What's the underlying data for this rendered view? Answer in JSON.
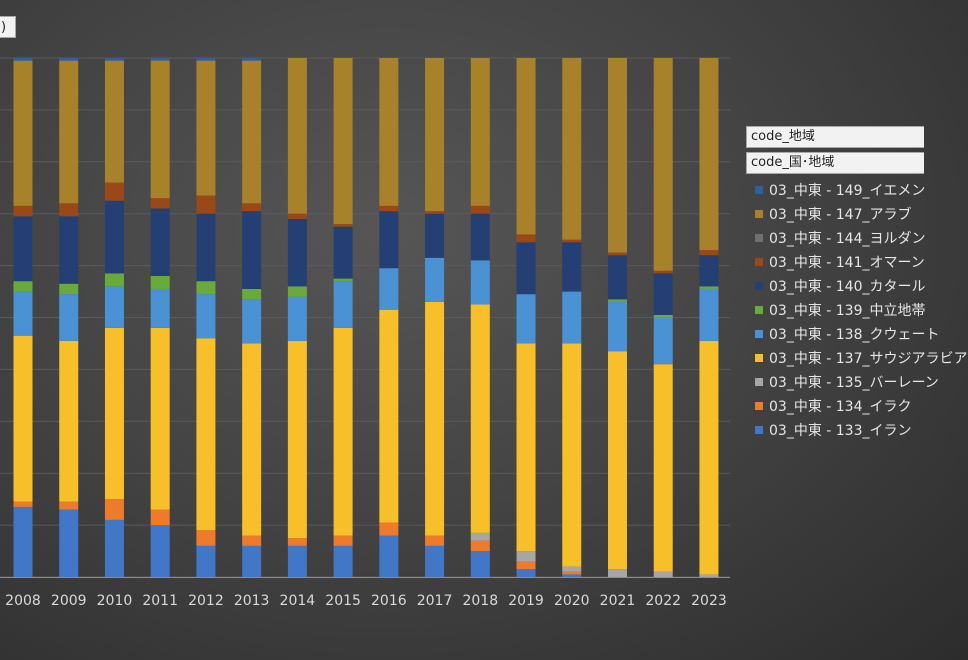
{
  "header": {
    "corner_tag": ")"
  },
  "legend": {
    "field_region": "code_地域",
    "field_country": "code_国･地域",
    "items": [
      {
        "label": "03_中東 - 149_イエメン",
        "color": "#2e5f9e"
      },
      {
        "label": "03_中東 - 147_アラブ",
        "color": "#a8822a"
      },
      {
        "label": "03_中東 - 144_ヨルダン",
        "color": "#6f6f6f"
      },
      {
        "label": "03_中東 - 141_オマーン",
        "color": "#9a4817"
      },
      {
        "label": "03_中東 - 140_カタール",
        "color": "#233f73"
      },
      {
        "label": "03_中東 - 139_中立地帯",
        "color": "#6aaa3c"
      },
      {
        "label": "03_中東 - 138_クウェート",
        "color": "#4a92d4"
      },
      {
        "label": "03_中東 - 137_サウジアラビア",
        "color": "#f7c02a"
      },
      {
        "label": "03_中東 - 135_バーレーン",
        "color": "#a6a6a6"
      },
      {
        "label": "03_中東 - 134_イラク",
        "color": "#ee7b2c"
      },
      {
        "label": "03_中東 - 133_イラン",
        "color": "#4277c8"
      }
    ]
  },
  "chart_data": {
    "type": "bar",
    "stacked": true,
    "normalized": true,
    "ylim": [
      0,
      1
    ],
    "grid": true,
    "legend_position": "right",
    "categories": [
      "2008",
      "2009",
      "2010",
      "2011",
      "2012",
      "2013",
      "2014",
      "2015",
      "2016",
      "2017",
      "2018",
      "2019",
      "2020",
      "2021",
      "2022",
      "2023"
    ],
    "series": [
      {
        "name": "03_中東 - 133_イラン",
        "values": [
          0.135,
          0.13,
          0.11,
          0.1,
          0.06,
          0.06,
          0.06,
          0.06,
          0.08,
          0.06,
          0.05,
          0.015,
          0.005,
          0,
          0,
          0
        ]
      },
      {
        "name": "03_中東 - 134_イラク",
        "values": [
          0.01,
          0.015,
          0.04,
          0.03,
          0.03,
          0.02,
          0.015,
          0.02,
          0.025,
          0.02,
          0.02,
          0.015,
          0.005,
          0,
          0,
          0
        ]
      },
      {
        "name": "03_中東 - 135_バーレーン",
        "values": [
          0,
          0,
          0,
          0,
          0,
          0,
          0,
          0,
          0,
          0,
          0.015,
          0.02,
          0.01,
          0.015,
          0.01,
          0.005
        ]
      },
      {
        "name": "03_中東 - 137_サウジアラビア",
        "values": [
          0.32,
          0.31,
          0.33,
          0.35,
          0.37,
          0.37,
          0.38,
          0.4,
          0.41,
          0.45,
          0.44,
          0.4,
          0.43,
          0.42,
          0.4,
          0.45
        ]
      },
      {
        "name": "03_中東 - 138_クウェート",
        "values": [
          0.085,
          0.09,
          0.08,
          0.075,
          0.085,
          0.085,
          0.085,
          0.09,
          0.08,
          0.085,
          0.085,
          0.095,
          0.1,
          0.095,
          0.09,
          0.1
        ]
      },
      {
        "name": "03_中東 - 139_中立地帯",
        "values": [
          0.02,
          0.02,
          0.025,
          0.025,
          0.025,
          0.02,
          0.02,
          0.005,
          0,
          0,
          0,
          0,
          0,
          0.005,
          0.005,
          0.005
        ]
      },
      {
        "name": "03_中東 - 140_カタール",
        "values": [
          0.125,
          0.13,
          0.14,
          0.13,
          0.13,
          0.15,
          0.13,
          0.1,
          0.11,
          0.085,
          0.09,
          0.1,
          0.095,
          0.085,
          0.08,
          0.06
        ]
      },
      {
        "name": "03_中東 - 141_オマーン",
        "values": [
          0.02,
          0.025,
          0.035,
          0.02,
          0.035,
          0.015,
          0.01,
          0.005,
          0.01,
          0.005,
          0.015,
          0.015,
          0.005,
          0.005,
          0.005,
          0.01
        ]
      },
      {
        "name": "03_中東 - 144_ヨルダン",
        "values": [
          0,
          0,
          0,
          0,
          0,
          0,
          0,
          0,
          0,
          0,
          0,
          0,
          0,
          0,
          0,
          0
        ]
      },
      {
        "name": "03_中東 - 147_アラブ",
        "values": [
          0.28,
          0.275,
          0.235,
          0.265,
          0.26,
          0.275,
          0.3,
          0.32,
          0.285,
          0.295,
          0.285,
          0.34,
          0.35,
          0.375,
          0.41,
          0.37
        ]
      },
      {
        "name": "03_中東 - 149_イエメン",
        "values": [
          0.005,
          0.005,
          0.005,
          0.005,
          0.005,
          0.005,
          0,
          0,
          0,
          0,
          0,
          0,
          0,
          0,
          0,
          0
        ]
      }
    ]
  }
}
